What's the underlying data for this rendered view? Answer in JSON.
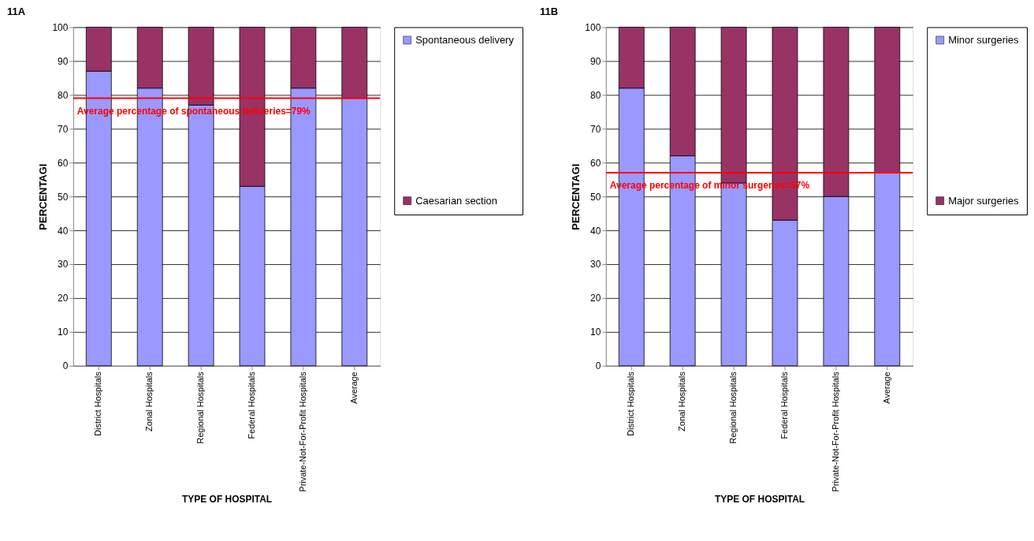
{
  "chart_data": [
    {
      "type": "bar",
      "title": "11A",
      "xlabel": "TYPE OF HOSPITAL",
      "ylabel": "PERCENTAGI",
      "stacked": true,
      "categories": [
        "District Hospitals",
        "Zonal Hospitals",
        "Regional Hospitals",
        "Federal Hospitals",
        "Private-Not-For-Profit Hospitals",
        "Average"
      ],
      "series": [
        {
          "name": "Spontaneous delivery",
          "color": "#9999ff",
          "values": [
            87,
            82,
            77,
            53,
            82,
            79
          ]
        },
        {
          "name": "Caesarian section",
          "color": "#993366",
          "values": [
            13,
            18,
            23,
            47,
            18,
            21
          ]
        }
      ],
      "ylim": [
        0,
        100
      ],
      "yticks": [
        0,
        10,
        20,
        30,
        40,
        50,
        60,
        70,
        80,
        90,
        100
      ],
      "grid": "y",
      "legend": "right",
      "ref_lines": [
        {
          "axis": "y",
          "value": 79,
          "label": "Average percentage of spontaneous deliveries=79%",
          "color": "#ff0000",
          "line_style": "solid"
        }
      ]
    },
    {
      "type": "bar",
      "title": "11B",
      "xlabel": "TYPE OF HOSPITAL",
      "ylabel": "PERCENTAGI",
      "stacked": true,
      "categories": [
        "District Hospitals",
        "Zonal Hospitals",
        "Regional Hospitals",
        "Federal Hospitals",
        "Private-Not-For-Profit Hospitals",
        "Average"
      ],
      "series": [
        {
          "name": "Minor surgeries",
          "color": "#9999ff",
          "values": [
            82,
            62,
            54,
            43,
            50,
            57
          ]
        },
        {
          "name": "Major surgeries",
          "color": "#993366",
          "values": [
            18,
            38,
            46,
            57,
            50,
            43
          ]
        }
      ],
      "ylim": [
        0,
        100
      ],
      "yticks": [
        0,
        10,
        20,
        30,
        40,
        50,
        60,
        70,
        80,
        90,
        100
      ],
      "grid": "y",
      "legend": "right",
      "ref_lines": [
        {
          "axis": "y",
          "value": 57,
          "label": "Average percentage of minor surgeries=57%",
          "color": "#ff0000",
          "line_style": "solid"
        }
      ]
    }
  ]
}
